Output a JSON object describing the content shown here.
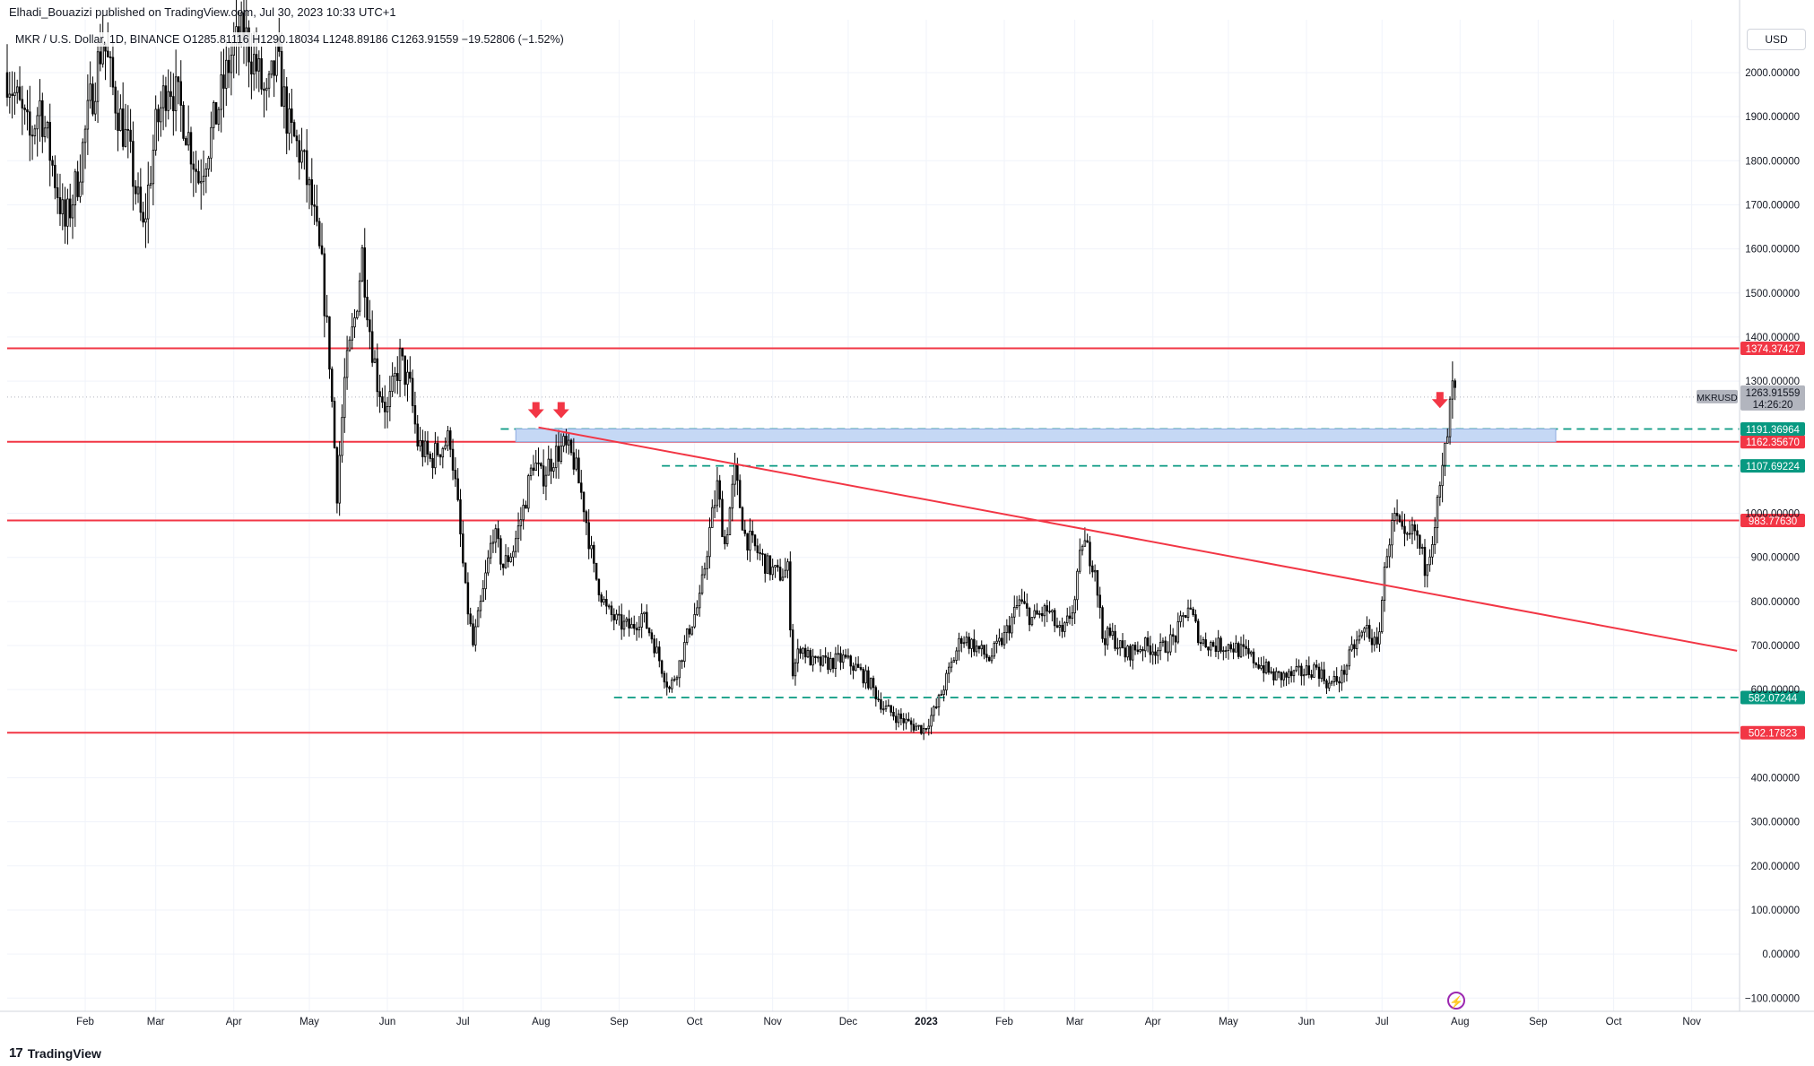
{
  "header": {
    "published_line": "Elhadi_Bouazizi published on TradingView.com, Jul 30, 2023 10:33 UTC+1",
    "ohlc_line": "MKR / U.S. Dollar, 1D, BINANCE  O1285.81116  H1290.18034  L1248.89186  C1263.91559  −19.52806 (−1.52%)"
  },
  "currency_button": "USD",
  "footer": {
    "logo_text": "TradingView",
    "logo_mark": "17"
  },
  "colors": {
    "support_resistance_line": "#f23645",
    "dashed_line": "#089981",
    "zone_fill": "#c5d8f5",
    "zone_border": "#8eabe0",
    "arrow": "#f23645",
    "candle_up": "#ffffff",
    "candle_down": "#000000",
    "grid": "#f0f3fa",
    "accent_purple": "#9c27b0"
  },
  "lightning_icon": "lightning-icon",
  "chart_data": {
    "type": "candlestick",
    "symbol": "MKR / U.S. Dollar",
    "interval": "1D",
    "exchange": "BINANCE",
    "ylim": [
      -130,
      2120
    ],
    "y_ticks": [
      {
        "value": 2000,
        "label": "2000.00000"
      },
      {
        "value": 1900,
        "label": "1900.00000"
      },
      {
        "value": 1800,
        "label": "1800.00000"
      },
      {
        "value": 1700,
        "label": "1700.00000"
      },
      {
        "value": 1600,
        "label": "1600.00000"
      },
      {
        "value": 1500,
        "label": "1500.00000"
      },
      {
        "value": 1400,
        "label": "1400.00000"
      },
      {
        "value": 1300,
        "label": "1300.00000"
      },
      {
        "value": 1000,
        "label": "1000.00000"
      },
      {
        "value": 900,
        "label": "900.00000"
      },
      {
        "value": 800,
        "label": "800.00000"
      },
      {
        "value": 700,
        "label": "700.00000"
      },
      {
        "value": 600,
        "label": "600.00000"
      },
      {
        "value": 400,
        "label": "400.00000"
      },
      {
        "value": 300,
        "label": "300.00000"
      },
      {
        "value": 200,
        "label": "200.00000"
      },
      {
        "value": 100,
        "label": "100.00000"
      },
      {
        "value": 0,
        "label": "0.00000"
      },
      {
        "value": -100,
        "label": "−100.00000"
      }
    ],
    "x_ticks": [
      {
        "date": "2022-02-01",
        "label": "Feb"
      },
      {
        "date": "2022-03-01",
        "label": "Mar"
      },
      {
        "date": "2022-04-01",
        "label": "Apr"
      },
      {
        "date": "2022-05-01",
        "label": "May"
      },
      {
        "date": "2022-06-01",
        "label": "Jun"
      },
      {
        "date": "2022-07-01",
        "label": "Jul"
      },
      {
        "date": "2022-08-01",
        "label": "Aug"
      },
      {
        "date": "2022-09-01",
        "label": "Sep"
      },
      {
        "date": "2022-10-01",
        "label": "Oct"
      },
      {
        "date": "2022-11-01",
        "label": "Nov"
      },
      {
        "date": "2022-12-01",
        "label": "Dec"
      },
      {
        "date": "2023-01-01",
        "label": "2023",
        "bold": true
      },
      {
        "date": "2023-02-01",
        "label": "Feb"
      },
      {
        "date": "2023-03-01",
        "label": "Mar"
      },
      {
        "date": "2023-04-01",
        "label": "Apr"
      },
      {
        "date": "2023-05-01",
        "label": "May"
      },
      {
        "date": "2023-06-01",
        "label": "Jun"
      },
      {
        "date": "2023-07-01",
        "label": "Jul"
      },
      {
        "date": "2023-08-01",
        "label": "Aug"
      },
      {
        "date": "2023-09-01",
        "label": "Sep"
      },
      {
        "date": "2023-10-01",
        "label": "Oct"
      },
      {
        "date": "2023-11-01",
        "label": "Nov"
      }
    ],
    "last_price": {
      "value": 1263.91559,
      "label": "1263.91559",
      "symbol_tag": "MKRUSD",
      "countdown": "14:26:20"
    },
    "horizontal_levels": [
      {
        "value": 1374.37427,
        "label": "1374.37427",
        "style": "solid",
        "color": "#f23645",
        "from": "2022-01-01"
      },
      {
        "value": 1162.3567,
        "label": "1162.35670",
        "style": "solid",
        "color": "#f23645",
        "from": "2022-01-01"
      },
      {
        "value": 983.7763,
        "label": "983.77630",
        "style": "solid",
        "color": "#f23645",
        "from": "2022-01-01"
      },
      {
        "value": 502.17823,
        "label": "502.17823",
        "style": "solid",
        "color": "#f23645",
        "from": "2022-01-01"
      },
      {
        "value": 1191.36964,
        "label": "1191.36964",
        "style": "dashed",
        "color": "#089981",
        "from": "2022-07-16"
      },
      {
        "value": 1107.69224,
        "label": "1107.69224",
        "style": "dashed",
        "color": "#089981",
        "from": "2022-09-18"
      },
      {
        "value": 582.07244,
        "label": "582.07244",
        "style": "dashed",
        "color": "#089981",
        "from": "2022-08-30"
      }
    ],
    "zone": {
      "from": "2022-07-22",
      "to": "2023-09-08",
      "low": 1162.36,
      "high": 1191.37
    },
    "trendline": {
      "start": {
        "date": "2022-07-31",
        "value": 1195
      },
      "end": {
        "date": "2023-11-19",
        "value": 688
      }
    },
    "arrows": [
      {
        "date": "2022-07-30",
        "value": 1232
      },
      {
        "date": "2022-08-09",
        "value": 1232
      },
      {
        "date": "2023-07-24",
        "value": 1255
      }
    ],
    "price_path": [
      [
        "2022-01-01",
        2000
      ],
      [
        "2022-01-10",
        1850
      ],
      [
        "2022-01-14",
        1930
      ],
      [
        "2022-01-20",
        1760
      ],
      [
        "2022-01-24",
        1650
      ],
      [
        "2022-01-29",
        1760
      ],
      [
        "2022-02-03",
        1930
      ],
      [
        "2022-02-08",
        2080
      ],
      [
        "2022-02-12",
        1960
      ],
      [
        "2022-02-18",
        1830
      ],
      [
        "2022-02-24",
        1640
      ],
      [
        "2022-03-01",
        1870
      ],
      [
        "2022-03-06",
        1990
      ],
      [
        "2022-03-12",
        1900
      ],
      [
        "2022-03-18",
        1760
      ],
      [
        "2022-03-24",
        1880
      ],
      [
        "2022-03-31",
        2040
      ],
      [
        "2022-04-05",
        2090
      ],
      [
        "2022-04-10",
        2010
      ],
      [
        "2022-04-14",
        1930
      ],
      [
        "2022-04-18",
        2030
      ],
      [
        "2022-04-23",
        1870
      ],
      [
        "2022-04-28",
        1810
      ],
      [
        "2022-05-02",
        1700
      ],
      [
        "2022-05-06",
        1550
      ],
      [
        "2022-05-09",
        1350
      ],
      [
        "2022-05-12",
        1050
      ],
      [
        "2022-05-15",
        1300
      ],
      [
        "2022-05-19",
        1440
      ],
      [
        "2022-05-22",
        1590
      ],
      [
        "2022-05-25",
        1420
      ],
      [
        "2022-05-28",
        1300
      ],
      [
        "2022-06-01",
        1230
      ],
      [
        "2022-06-06",
        1350
      ],
      [
        "2022-06-10",
        1280
      ],
      [
        "2022-06-13",
        1160
      ],
      [
        "2022-06-18",
        1120
      ],
      [
        "2022-06-22",
        1150
      ],
      [
        "2022-06-26",
        1170
      ],
      [
        "2022-06-29",
        1010
      ],
      [
        "2022-07-02",
        820
      ],
      [
        "2022-07-05",
        700
      ],
      [
        "2022-07-09",
        820
      ],
      [
        "2022-07-13",
        960
      ],
      [
        "2022-07-17",
        880
      ],
      [
        "2022-07-21",
        920
      ],
      [
        "2022-07-25",
        1010
      ],
      [
        "2022-07-29",
        1120
      ],
      [
        "2022-08-01",
        1080
      ],
      [
        "2022-08-06",
        1130
      ],
      [
        "2022-08-10",
        1150
      ],
      [
        "2022-08-14",
        1120
      ],
      [
        "2022-08-18",
        1020
      ],
      [
        "2022-08-22",
        870
      ],
      [
        "2022-08-27",
        780
      ],
      [
        "2022-09-01",
        750
      ],
      [
        "2022-09-06",
        740
      ],
      [
        "2022-09-10",
        770
      ],
      [
        "2022-09-14",
        720
      ],
      [
        "2022-09-18",
        650
      ],
      [
        "2022-09-21",
        600
      ],
      [
        "2022-09-25",
        660
      ],
      [
        "2022-09-29",
        740
      ],
      [
        "2022-10-03",
        800
      ],
      [
        "2022-10-07",
        960
      ],
      [
        "2022-10-10",
        1060
      ],
      [
        "2022-10-13",
        930
      ],
      [
        "2022-10-17",
        1090
      ],
      [
        "2022-10-21",
        950
      ],
      [
        "2022-10-25",
        920
      ],
      [
        "2022-10-30",
        880
      ],
      [
        "2022-11-03",
        860
      ],
      [
        "2022-11-07",
        870
      ],
      [
        "2022-11-09",
        640
      ],
      [
        "2022-11-12",
        700
      ],
      [
        "2022-11-17",
        660
      ],
      [
        "2022-11-23",
        660
      ],
      [
        "2022-11-29",
        670
      ],
      [
        "2022-12-04",
        650
      ],
      [
        "2022-12-09",
        620
      ],
      [
        "2022-12-15",
        560
      ],
      [
        "2022-12-20",
        540
      ],
      [
        "2022-12-26",
        520
      ],
      [
        "2022-12-31",
        510
      ],
      [
        "2023-01-05",
        560
      ],
      [
        "2023-01-10",
        640
      ],
      [
        "2023-01-15",
        720
      ],
      [
        "2023-01-20",
        700
      ],
      [
        "2023-01-26",
        670
      ],
      [
        "2023-02-01",
        720
      ],
      [
        "2023-02-07",
        800
      ],
      [
        "2023-02-12",
        760
      ],
      [
        "2023-02-18",
        780
      ],
      [
        "2023-02-24",
        720
      ],
      [
        "2023-03-01",
        800
      ],
      [
        "2023-03-04",
        940
      ],
      [
        "2023-03-09",
        880
      ],
      [
        "2023-03-12",
        720
      ],
      [
        "2023-03-16",
        720
      ],
      [
        "2023-03-21",
        680
      ],
      [
        "2023-03-28",
        700
      ],
      [
        "2023-04-04",
        690
      ],
      [
        "2023-04-10",
        720
      ],
      [
        "2023-04-15",
        790
      ],
      [
        "2023-04-20",
        710
      ],
      [
        "2023-04-26",
        700
      ],
      [
        "2023-05-02",
        700
      ],
      [
        "2023-05-08",
        680
      ],
      [
        "2023-05-13",
        660
      ],
      [
        "2023-05-19",
        630
      ],
      [
        "2023-05-25",
        630
      ],
      [
        "2023-05-31",
        640
      ],
      [
        "2023-06-05",
        650
      ],
      [
        "2023-06-10",
        610
      ],
      [
        "2023-06-15",
        630
      ],
      [
        "2023-06-20",
        700
      ],
      [
        "2023-06-25",
        740
      ],
      [
        "2023-06-29",
        690
      ],
      [
        "2023-07-03",
        920
      ],
      [
        "2023-07-06",
        990
      ],
      [
        "2023-07-10",
        930
      ],
      [
        "2023-07-14",
        960
      ],
      [
        "2023-07-18",
        880
      ],
      [
        "2023-07-21",
        950
      ],
      [
        "2023-07-24",
        1050
      ],
      [
        "2023-07-27",
        1180
      ],
      [
        "2023-07-29",
        1285
      ],
      [
        "2023-07-30",
        1264
      ]
    ]
  }
}
